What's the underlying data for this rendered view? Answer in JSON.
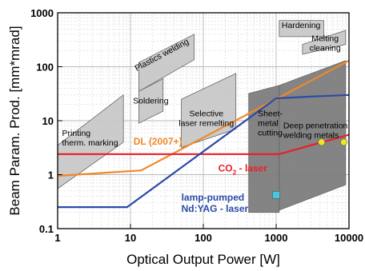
{
  "chart_data": {
    "type": "line",
    "xlabel": "Optical Output Power [W]",
    "ylabel": "Beam Param. Prod. [mm*mrad]",
    "x_scale": "log",
    "y_scale": "log",
    "xlim": [
      1,
      10000
    ],
    "ylim": [
      0.1,
      1000
    ],
    "x_ticks": [
      {
        "v": 1,
        "label": "1"
      },
      {
        "v": 10,
        "label": "10"
      },
      {
        "v": 100,
        "label": "100"
      },
      {
        "v": 1000,
        "label": "1000"
      },
      {
        "v": 10000,
        "label": "10000"
      }
    ],
    "y_ticks": [
      {
        "v": 0.1,
        "label": "0.1"
      },
      {
        "v": 1,
        "label": "1"
      },
      {
        "v": 10,
        "label": "10"
      },
      {
        "v": 100,
        "label": "100"
      },
      {
        "v": 1000,
        "label": "1000"
      }
    ],
    "grid": true,
    "series": [
      {
        "name": "DL (2007+)",
        "color": "#f0882a",
        "label_lines": [
          "DL (2007+)"
        ],
        "points": [
          [
            1,
            0.95
          ],
          [
            14,
            1.2
          ],
          [
            10000,
            130
          ]
        ]
      },
      {
        "name": "CO2 - laser",
        "color": "#e8202a",
        "label_lines": [
          "CO",
          "2",
          " - laser"
        ],
        "points": [
          [
            1,
            2.4
          ],
          [
            1100,
            2.4
          ],
          [
            10000,
            5.5
          ]
        ]
      },
      {
        "name": "lamp-pumped Nd:YAG - laser",
        "color": "#2c4aa8",
        "label_lines": [
          "lamp-pumped",
          "Nd:YAG - laser"
        ],
        "points": [
          [
            1,
            0.25
          ],
          [
            9,
            0.25
          ],
          [
            1000,
            26
          ],
          [
            3000,
            28
          ],
          [
            10000,
            30
          ]
        ]
      }
    ],
    "markers": [
      {
        "type": "circle",
        "x": 4200,
        "y": 4,
        "color": "#f2e22a"
      },
      {
        "type": "circle",
        "x": 8500,
        "y": 4,
        "color": "#f2e22a"
      },
      {
        "type": "square",
        "x": 1000,
        "y": 0.42,
        "color": "#49c6e0"
      }
    ],
    "regions": [
      {
        "label_lines": [
          "Printing",
          "therm. marking"
        ],
        "shade": "light",
        "label_rotate": 0,
        "polygon": [
          [
            1,
            0.55
          ],
          [
            1,
            3.5
          ],
          [
            8,
            30
          ],
          [
            8,
            4
          ]
        ]
      },
      {
        "label_lines": [
          "Plastics welding"
        ],
        "shade": "light",
        "label_rotate": -28,
        "polygon": [
          [
            13,
            120
          ],
          [
            75,
            400
          ],
          [
            75,
            135
          ],
          [
            13,
            35
          ]
        ]
      },
      {
        "label_lines": [
          "Soldering"
        ],
        "shade": "light",
        "label_rotate": 0,
        "polygon": [
          [
            13,
            35
          ],
          [
            28,
            60
          ],
          [
            28,
            15
          ],
          [
            13,
            9
          ]
        ]
      },
      {
        "label_lines": [
          "Selective",
          "laser remelting"
        ],
        "shade": "light",
        "label_rotate": 0,
        "polygon": [
          [
            50,
            3.2
          ],
          [
            50,
            25
          ],
          [
            280,
            75
          ],
          [
            280,
            7
          ]
        ]
      },
      {
        "label_lines": [
          "Hardening"
        ],
        "shade": "light",
        "label_rotate": 0,
        "polygon": [
          [
            1100,
            360
          ],
          [
            1100,
            720
          ],
          [
            4500,
            720
          ],
          [
            4500,
            360
          ]
        ]
      },
      {
        "label_lines": [
          "Melting",
          "cleaning"
        ],
        "shade": "light",
        "label_rotate": 0,
        "polygon": [
          [
            2300,
            170
          ],
          [
            2300,
            260
          ],
          [
            9000,
            470
          ],
          [
            9000,
            260
          ]
        ]
      },
      {
        "label_lines": [
          "Sheet-",
          "metal",
          "cutting"
        ],
        "shade": "dark",
        "label_rotate": 0,
        "polygon": [
          [
            420,
            0.2
          ],
          [
            420,
            32
          ],
          [
            1100,
            45
          ],
          [
            1100,
            0.2
          ]
        ]
      },
      {
        "label_lines": [
          "Deep penetration",
          "welding metals"
        ],
        "shade": "dark",
        "label_rotate": 0,
        "polygon": [
          [
            1100,
            0.22
          ],
          [
            1100,
            45
          ],
          [
            9000,
            130
          ],
          [
            9000,
            0.65
          ]
        ]
      }
    ]
  }
}
